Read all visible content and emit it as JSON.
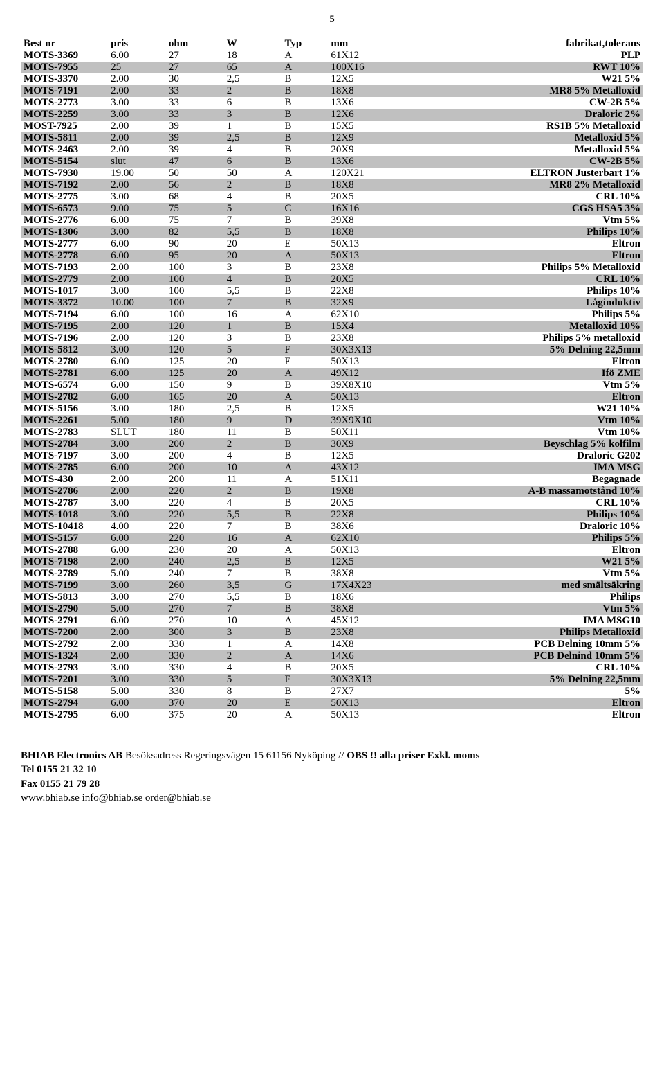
{
  "page_number": "5",
  "table": {
    "columns": [
      "Best nr",
      "pris",
      "ohm",
      "W",
      "Typ",
      "mm",
      "fabrikat,tolerans"
    ],
    "column_classes": [
      "col-bestnr",
      "col-pris",
      "col-ohm",
      "col-w",
      "col-typ",
      "col-mm",
      "col-fab"
    ],
    "rows": [
      [
        "MOTS-3369",
        "6.00",
        "27",
        "18",
        "A",
        "61X12",
        "PLP"
      ],
      [
        "MOTS-7955",
        "25",
        "27",
        "65",
        "A",
        "100X16",
        "RWT 10%"
      ],
      [
        "MOTS-3370",
        "2.00",
        "30",
        "2,5",
        "B",
        "12X5",
        "W21 5%"
      ],
      [
        "MOTS-7191",
        "2.00",
        "33",
        "2",
        "B",
        "18X8",
        "MR8 5% Metalloxid"
      ],
      [
        "MOTS-2773",
        "3.00",
        "33",
        "6",
        "B",
        "13X6",
        "CW-2B 5%"
      ],
      [
        "MOTS-2259",
        "3.00",
        "33",
        "3",
        "B",
        "12X6",
        "Draloric 2%"
      ],
      [
        "MOST-7925",
        "2.00",
        "39",
        "1",
        "B",
        "15X5",
        "RS1B 5% Metalloxid"
      ],
      [
        "MOTS-5811",
        "2.00",
        "39",
        "2,5",
        "B",
        "12X9",
        "Metalloxid 5%"
      ],
      [
        "MOTS-2463",
        "2.00",
        "39",
        "4",
        "B",
        "20X9",
        "Metalloxid 5%"
      ],
      [
        "MOTS-5154",
        "slut",
        "47",
        "6",
        "B",
        "13X6",
        "CW-2B 5%"
      ],
      [
        "MOTS-7930",
        "19.00",
        "50",
        "50",
        "A",
        "120X21",
        "ELTRON Justerbart 1%"
      ],
      [
        "MOTS-7192",
        "2.00",
        "56",
        "2",
        "B",
        "18X8",
        "MR8 2% Metalloxid"
      ],
      [
        "MOTS-2775",
        "3.00",
        "68",
        "4",
        "B",
        "20X5",
        "CRL 10%"
      ],
      [
        "MOTS-6573",
        "9.00",
        "75",
        "5",
        "C",
        "16X16",
        "CGS HSA5 3%"
      ],
      [
        "MOTS-2776",
        "6.00",
        "75",
        "7",
        "B",
        "39X8",
        "Vtm 5%"
      ],
      [
        "MOTS-1306",
        "3.00",
        "82",
        "5,5",
        "B",
        "18X8",
        "Philips 10%"
      ],
      [
        "MOTS-2777",
        "6.00",
        "90",
        "20",
        "E",
        "50X13",
        "Eltron"
      ],
      [
        "MOTS-2778",
        "6.00",
        "95",
        "20",
        "A",
        "50X13",
        "Eltron"
      ],
      [
        "MOTS-7193",
        "2.00",
        "100",
        "3",
        "B",
        "23X8",
        "Philips 5% Metalloxid"
      ],
      [
        "MOTS-2779",
        "2.00",
        "100",
        "4",
        "B",
        "20X5",
        "CRL 10%"
      ],
      [
        "MOTS-1017",
        "3.00",
        "100",
        "5,5",
        "B",
        "22X8",
        "Philips 10%"
      ],
      [
        "MOTS-3372",
        "10.00",
        "100",
        "7",
        "B",
        "32X9",
        "Låginduktiv"
      ],
      [
        "MOTS-7194",
        "6.00",
        "100",
        "16",
        "A",
        "62X10",
        "Philips 5%"
      ],
      [
        "MOTS-7195",
        "2.00",
        "120",
        "1",
        "B",
        "15X4",
        "Metalloxid 10%"
      ],
      [
        "MOTS-7196",
        "2.00",
        "120",
        "3",
        "B",
        "23X8",
        "Philips 5% metalloxid"
      ],
      [
        "MOTS-5812",
        "3.00",
        "120",
        "5",
        "F",
        "30X3X13",
        "5% Delning 22,5mm"
      ],
      [
        "MOTS-2780",
        "6.00",
        "125",
        "20",
        "E",
        "50X13",
        "Eltron"
      ],
      [
        "MOTS-2781",
        "6.00",
        "125",
        "20",
        "A",
        "49X12",
        "Ifö ZME"
      ],
      [
        "MOTS-6574",
        "6.00",
        "150",
        "9",
        "B",
        "39X8X10",
        "Vtm 5%"
      ],
      [
        "MOTS-2782",
        "6.00",
        "165",
        "20",
        "A",
        "50X13",
        "Eltron"
      ],
      [
        "MOTS-5156",
        "3.00",
        "180",
        "2,5",
        "B",
        "12X5",
        "W21 10%"
      ],
      [
        "MOTS-2261",
        "5.00",
        "180",
        "9",
        "D",
        "39X9X10",
        "Vtm 10%"
      ],
      [
        "MOTS-2783",
        "SLUT",
        "180",
        "11",
        "B",
        "50X11",
        "Vtm 10%"
      ],
      [
        "MOTS-2784",
        "3.00",
        "200",
        "2",
        "B",
        "30X9",
        "Beyschlag 5% kolfilm"
      ],
      [
        "MOTS-7197",
        "3.00",
        "200",
        "4",
        "B",
        "12X5",
        "Draloric G202"
      ],
      [
        "MOTS-2785",
        "6.00",
        "200",
        "10",
        "A",
        "43X12",
        "IMA MSG"
      ],
      [
        "MOTS-430",
        "2.00",
        "200",
        "11",
        "A",
        "51X11",
        "Begagnade"
      ],
      [
        "MOTS-2786",
        "2.00",
        "220",
        "2",
        "B",
        "19X8",
        "A-B massamotstånd 10%"
      ],
      [
        "MOTS-2787",
        "3.00",
        "220",
        "4",
        "B",
        "20X5",
        "CRL 10%"
      ],
      [
        "MOTS-1018",
        "3.00",
        "220",
        "5,5",
        "B",
        "22X8",
        "Philips 10%"
      ],
      [
        "MOTS-10418",
        "4.00",
        "220",
        "7",
        "B",
        "38X6",
        "Draloric 10%"
      ],
      [
        "MOTS-5157",
        "6.00",
        "220",
        "16",
        "A",
        "62X10",
        "Philips 5%"
      ],
      [
        "MOTS-2788",
        "6.00",
        "230",
        "20",
        "A",
        "50X13",
        "Eltron"
      ],
      [
        "MOTS-7198",
        "2.00",
        "240",
        "2,5",
        "B",
        "12X5",
        "W21 5%"
      ],
      [
        "MOTS-2789",
        "5.00",
        "240",
        "7",
        "B",
        "38X8",
        "Vtm 5%"
      ],
      [
        "MOTS-7199",
        "3.00",
        "260",
        "3,5",
        "G",
        "17X4X23",
        "med smältsäkring"
      ],
      [
        "MOTS-5813",
        "3.00",
        "270",
        "5,5",
        "B",
        "18X6",
        "Philips"
      ],
      [
        "MOTS-2790",
        "5.00",
        "270",
        "7",
        "B",
        "38X8",
        "Vtm 5%"
      ],
      [
        "MOTS-2791",
        "6.00",
        "270",
        "10",
        "A",
        "45X12",
        "IMA MSG10"
      ],
      [
        "MOTS-7200",
        "2.00",
        "300",
        "3",
        "B",
        "23X8",
        "Philips Metalloxid"
      ],
      [
        "MOTS-2792",
        "2.00",
        "330",
        "1",
        "A",
        "14X8",
        "PCB Delning 10mm 5%"
      ],
      [
        "MOTS-1324",
        "2.00",
        "330",
        "2",
        "A",
        "14X6",
        "PCB Delnind 10mm 5%"
      ],
      [
        "MOTS-2793",
        "3.00",
        "330",
        "4",
        "B",
        "20X5",
        "CRL 10%"
      ],
      [
        "MOTS-7201",
        "3.00",
        "330",
        "5",
        "F",
        "30X3X13",
        "5% Delning 22,5mm"
      ],
      [
        "MOTS-5158",
        "5.00",
        "330",
        "8",
        "B",
        "27X7",
        "5%"
      ],
      [
        "MOTS-2794",
        "6.00",
        "370",
        "20",
        "E",
        "50X13",
        "Eltron"
      ],
      [
        "MOTS-2795",
        "6.00",
        "375",
        "20",
        "A",
        "50X13",
        "Eltron"
      ]
    ],
    "shaded_row_color": "#c0c0c0"
  },
  "footer": {
    "line1_bold": "BHIAB Electronics AB",
    "line1_rest": "Besöksadress Regeringsvägen 15      61156 Nyköping // ",
    "line1_bold2": "OBS !! alla priser Exkl. moms",
    "tel": "Tel 0155 21 32 10",
    "fax": "Fax 0155 21 79 28",
    "web": "www.bhiab.se   info@bhiab.se   order@bhiab.se"
  }
}
